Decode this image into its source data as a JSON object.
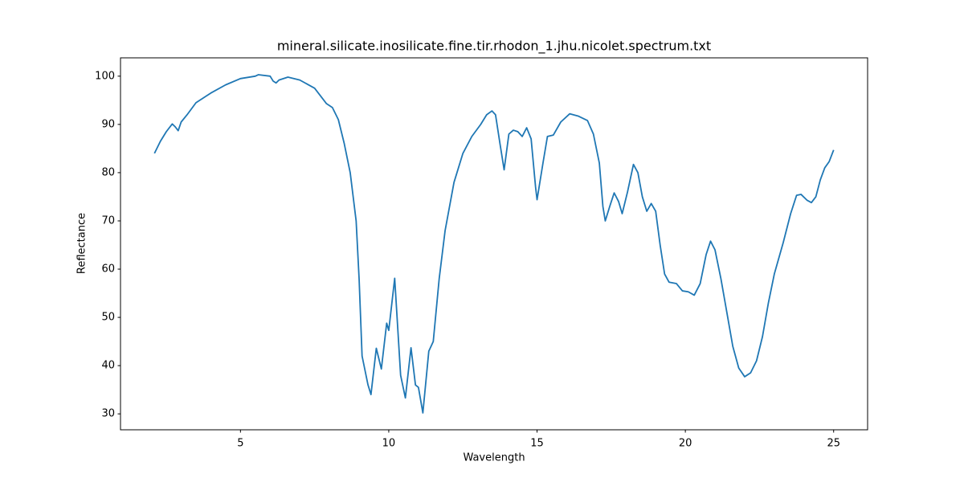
{
  "chart_data": {
    "type": "line",
    "title": "mineral.silicate.inosilicate.fine.tir.rhodon_1.jhu.nicolet.spectrum.txt",
    "x_label": "Wavelength",
    "y_label": "Reflectance",
    "color": "#1f77b4",
    "xlim": [
      0.955,
      26.145
    ],
    "ylim": [
      26.7,
      103.8
    ],
    "xticks": [
      5,
      10,
      15,
      20,
      25
    ],
    "yticks": [
      30,
      40,
      50,
      60,
      70,
      80,
      90,
      100
    ],
    "grid": false,
    "x": [
      2.1,
      2.3,
      2.5,
      2.7,
      2.8,
      2.9,
      3.0,
      3.2,
      3.5,
      4.0,
      4.5,
      5.0,
      5.5,
      5.6,
      6.0,
      6.1,
      6.2,
      6.3,
      6.6,
      7.0,
      7.5,
      7.9,
      8.1,
      8.3,
      8.5,
      8.7,
      8.9,
      9.0,
      9.1,
      9.3,
      9.4,
      9.58,
      9.75,
      9.93,
      10.0,
      10.2,
      10.4,
      10.56,
      10.75,
      10.9,
      11.0,
      11.15,
      11.35,
      11.5,
      11.7,
      11.9,
      12.2,
      12.5,
      12.8,
      13.1,
      13.3,
      13.48,
      13.6,
      13.75,
      13.89,
      14.05,
      14.2,
      14.35,
      14.5,
      14.65,
      14.8,
      14.95,
      15.0,
      15.2,
      15.35,
      15.55,
      15.8,
      16.1,
      16.4,
      16.7,
      16.9,
      17.1,
      17.22,
      17.3,
      17.45,
      17.6,
      17.75,
      17.87,
      18.05,
      18.25,
      18.4,
      18.55,
      18.7,
      18.85,
      19.0,
      19.15,
      19.3,
      19.45,
      19.7,
      19.9,
      20.1,
      20.3,
      20.5,
      20.7,
      20.85,
      21.0,
      21.2,
      21.4,
      21.6,
      21.8,
      22.0,
      22.2,
      22.4,
      22.6,
      22.8,
      23.0,
      23.3,
      23.55,
      23.75,
      23.9,
      24.1,
      24.25,
      24.4,
      24.55,
      24.7,
      24.85,
      25.0
    ],
    "values": [
      84,
      86.5,
      88.5,
      90.1,
      89.5,
      88.7,
      90.5,
      92,
      94.5,
      96.5,
      98.2,
      99.5,
      100,
      100.3,
      100,
      99,
      98.6,
      99.2,
      99.8,
      99.2,
      97.5,
      94.3,
      93.5,
      91,
      86,
      80,
      70,
      58,
      42,
      36,
      34,
      43.6,
      39.3,
      48.8,
      47.3,
      58.1,
      38,
      33.3,
      43.7,
      36,
      35.5,
      30.2,
      43,
      45,
      58,
      68,
      78,
      84,
      87.5,
      90,
      92,
      92.8,
      92,
      86,
      80.6,
      88,
      88.8,
      88.5,
      87.5,
      89.3,
      87,
      77,
      74.4,
      82,
      87.5,
      87.8,
      90.5,
      92.2,
      91.7,
      90.8,
      88,
      82,
      73,
      70,
      73,
      75.8,
      74,
      71.5,
      76,
      81.7,
      80,
      75,
      72,
      73.6,
      72,
      65,
      59,
      57.3,
      57,
      55.5,
      55.3,
      54.6,
      57,
      63,
      65.8,
      64,
      58,
      51,
      44,
      39.5,
      37.7,
      38.5,
      41,
      46,
      53,
      59,
      65.5,
      71.5,
      75.3,
      75.5,
      74.3,
      73.8,
      75,
      78.5,
      81,
      82.3,
      84.7
    ]
  }
}
